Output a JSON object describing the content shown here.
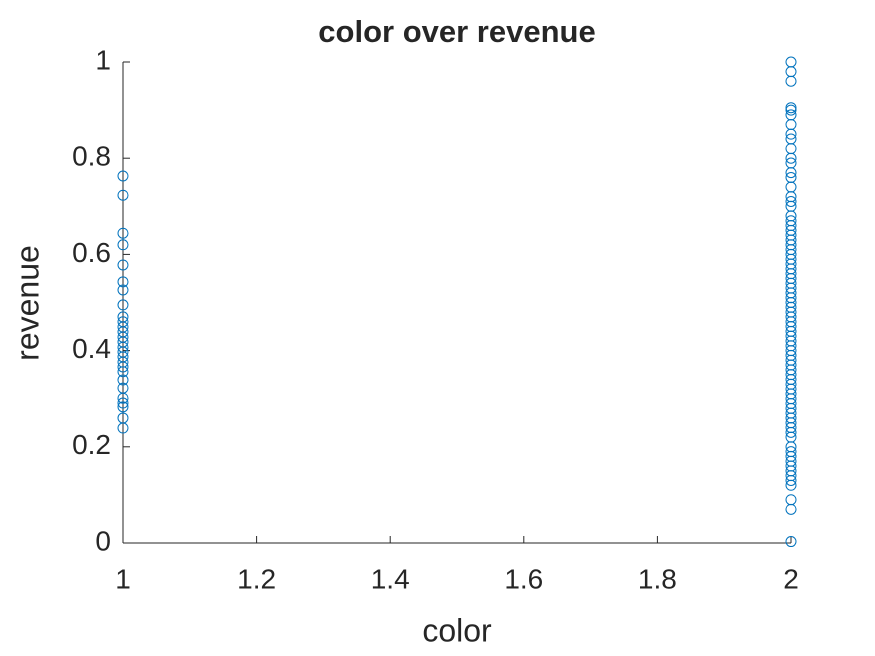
{
  "chart_data": {
    "type": "scatter",
    "title": "color over revenue",
    "x_label": "color",
    "y_label": "revenue",
    "x": [
      1,
      1,
      1,
      1,
      1,
      1,
      1,
      1,
      1,
      1,
      1,
      1,
      1,
      1,
      1,
      1,
      1,
      1,
      1,
      1,
      1,
      1,
      1,
      1,
      1,
      1,
      1,
      2,
      2,
      2,
      2,
      2,
      2,
      2,
      2,
      2,
      2,
      2,
      2,
      2,
      2,
      2,
      2,
      2,
      2,
      2,
      2,
      2,
      2,
      2,
      2,
      2,
      2,
      2,
      2,
      2,
      2,
      2,
      2,
      2,
      2,
      2,
      2,
      2,
      2,
      2,
      2,
      2,
      2,
      2,
      2,
      2,
      2,
      2,
      2,
      2,
      2,
      2,
      2,
      2,
      2,
      2,
      2,
      2,
      2,
      2,
      2,
      2,
      2,
      2,
      2,
      2,
      2,
      2,
      2,
      2,
      2,
      2,
      2,
      2,
      2,
      2,
      2,
      2
    ],
    "values": [
      0.763,
      0.723,
      0.644,
      0.62,
      0.578,
      0.543,
      0.526,
      0.495,
      0.47,
      0.46,
      0.449,
      0.439,
      0.428,
      0.418,
      0.407,
      0.397,
      0.387,
      0.376,
      0.366,
      0.356,
      0.339,
      0.322,
      0.301,
      0.291,
      0.283,
      0.26,
      0.239,
      1,
      0.98,
      0.96,
      0.905,
      0.9,
      0.89,
      0.87,
      0.85,
      0.84,
      0.82,
      0.8,
      0.79,
      0.77,
      0.76,
      0.74,
      0.72,
      0.71,
      0.7,
      0.68,
      0.67,
      0.66,
      0.65,
      0.64,
      0.63,
      0.62,
      0.61,
      0.6,
      0.59,
      0.58,
      0.57,
      0.56,
      0.55,
      0.54,
      0.53,
      0.52,
      0.51,
      0.5,
      0.49,
      0.48,
      0.47,
      0.46,
      0.45,
      0.44,
      0.43,
      0.42,
      0.41,
      0.4,
      0.39,
      0.38,
      0.37,
      0.36,
      0.35,
      0.34,
      0.33,
      0.32,
      0.31,
      0.3,
      0.29,
      0.28,
      0.27,
      0.26,
      0.25,
      0.24,
      0.23,
      0.22,
      0.2,
      0.19,
      0.18,
      0.17,
      0.16,
      0.15,
      0.14,
      0.13,
      0.12,
      0.09,
      0.07,
      0.003
    ],
    "color": "#0072bd",
    "xlim": [
      1,
      2
    ],
    "xticks": [
      1,
      1.2,
      1.4,
      1.6,
      1.8,
      2
    ],
    "ylim": [
      0,
      1
    ],
    "yticks": [
      0,
      0.2,
      0.4,
      0.6,
      0.8,
      1
    ]
  }
}
